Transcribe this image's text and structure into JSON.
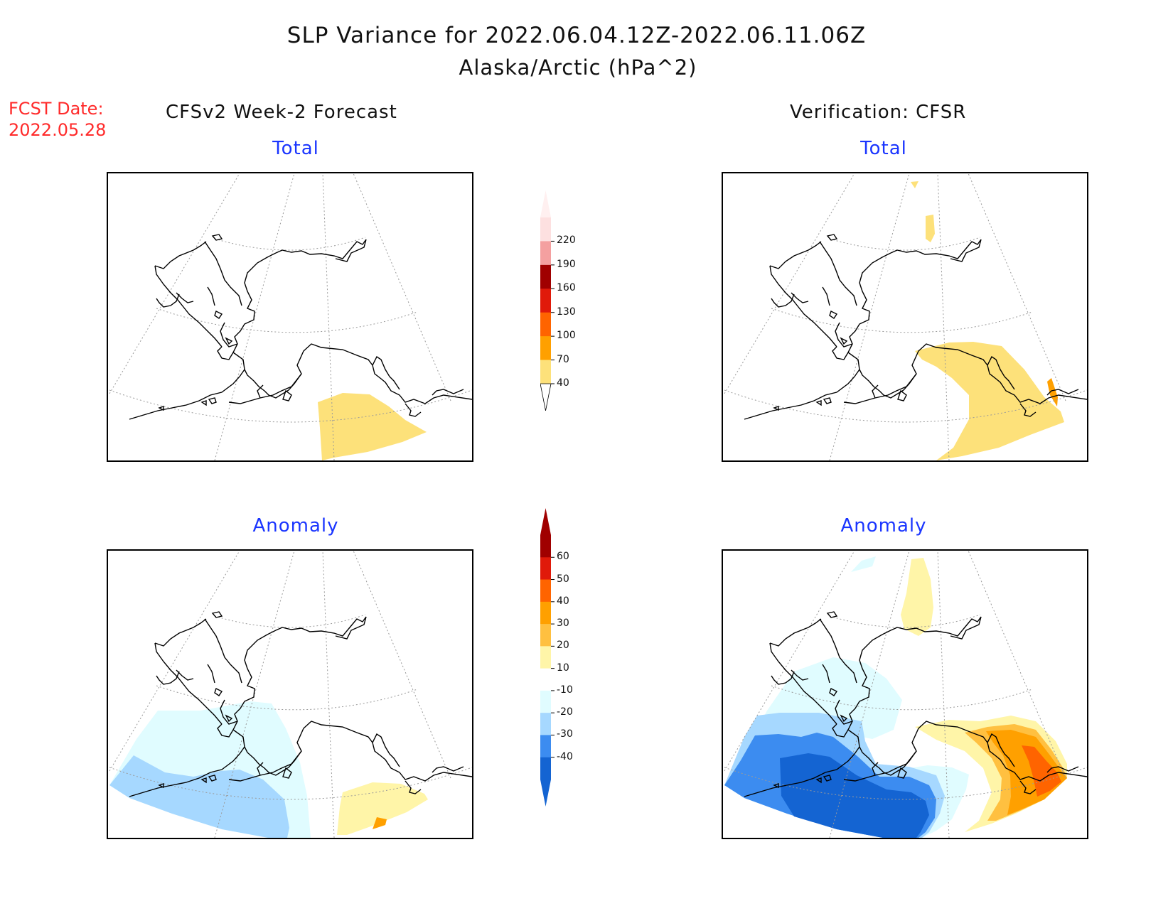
{
  "header": {
    "title": "SLP Variance for 2022.06.04.12Z-2022.06.11.06Z",
    "subtitle": "Alaska/Arctic (hPa^2)",
    "fcst_label": "FCST Date:",
    "fcst_date": "2022.05.28"
  },
  "columns": {
    "left": "CFSv2 Week-2 Forecast",
    "right": "Verification: CFSR"
  },
  "panels": {
    "top_left": "Total",
    "top_right": "Total",
    "bottom_left": "Anomaly",
    "bottom_right": "Anomaly"
  },
  "colorbars": {
    "total": {
      "labels": [
        "220",
        "190",
        "160",
        "130",
        "100",
        "70",
        "40"
      ],
      "colors": [
        "#fde0e0",
        "#f4a0a0",
        "#a00000",
        "#e01a0a",
        "#ff6400",
        "#ffa000",
        "#fde17a"
      ]
    },
    "anomaly": {
      "labels": [
        "60",
        "50",
        "40",
        "30",
        "20",
        "10",
        "-10",
        "-20",
        "-30",
        "-40"
      ],
      "colors": [
        "#a00000",
        "#e01a0a",
        "#ff6400",
        "#ffa000",
        "#ffc040",
        "#fff5a8",
        "#ffffff",
        "#e0fcff",
        "#a6d8ff",
        "#3c8cf0",
        "#1464d2"
      ]
    }
  }
}
